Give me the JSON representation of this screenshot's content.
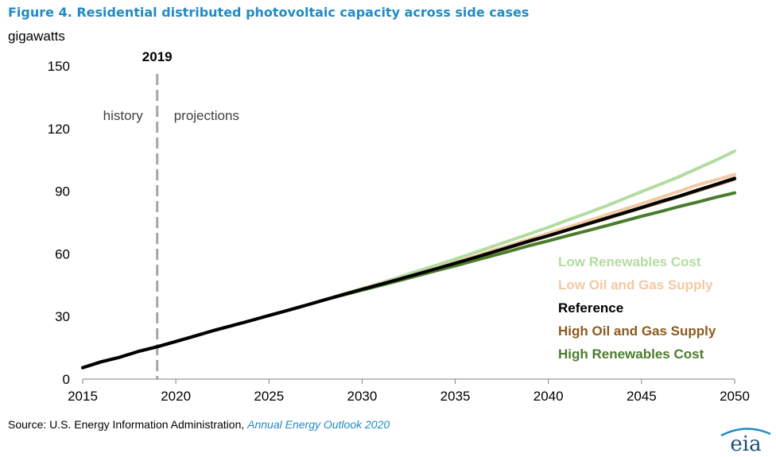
{
  "title": "Figure 4. Residential distributed photovoltaic capacity across side cases",
  "unit_label": "gigawatts",
  "source": {
    "prefix": "Source: U.S. Energy Information Administration, ",
    "publication": "Annual Energy Outlook 2020"
  },
  "logo_text": "eia",
  "chart_data": {
    "type": "line",
    "xlim": [
      2015,
      2050
    ],
    "ylim": [
      0,
      150
    ],
    "x_ticks": [
      2015,
      2020,
      2025,
      2030,
      2035,
      2040,
      2045,
      2050
    ],
    "y_ticks": [
      0,
      30,
      60,
      90,
      120,
      150
    ],
    "grid": false,
    "legend_position": "right",
    "annotations": {
      "divider_year": 2019,
      "divider_label": "2019",
      "left_label": "history",
      "right_label": "projections"
    },
    "series": [
      {
        "name": "Low Renewables Cost",
        "color": "#b3dca0",
        "x": [
          2015,
          2016,
          2017,
          2018,
          2019,
          2020,
          2021,
          2022,
          2023,
          2024,
          2025,
          2026,
          2027,
          2028,
          2029,
          2030,
          2031,
          2032,
          2033,
          2034,
          2035,
          2036,
          2037,
          2038,
          2039,
          2040,
          2041,
          2042,
          2043,
          2044,
          2045,
          2046,
          2047,
          2048,
          2049,
          2050
        ],
        "values": [
          5.5,
          8.3,
          10.5,
          13.3,
          15.5,
          18,
          20.6,
          23.2,
          25.6,
          28,
          30.5,
          32.9,
          35.4,
          38,
          40.8,
          43.4,
          46.1,
          48.9,
          51.8,
          54.6,
          57.5,
          60.5,
          63.5,
          66.6,
          69.6,
          72.7,
          76.1,
          79.3,
          82.6,
          86.2,
          89.8,
          93.3,
          96.9,
          100.9,
          104.9,
          109.2
        ]
      },
      {
        "name": "Low Oil and Gas Supply",
        "color": "#f2c9a3",
        "x": [
          2015,
          2016,
          2017,
          2018,
          2019,
          2020,
          2021,
          2022,
          2023,
          2024,
          2025,
          2026,
          2027,
          2028,
          2029,
          2030,
          2031,
          2032,
          2033,
          2034,
          2035,
          2036,
          2037,
          2038,
          2039,
          2040,
          2041,
          2042,
          2043,
          2044,
          2045,
          2046,
          2047,
          2048,
          2049,
          2050
        ],
        "values": [
          5.5,
          8.3,
          10.5,
          13.3,
          15.5,
          18,
          20.6,
          23.2,
          25.6,
          28,
          30.5,
          32.9,
          35.4,
          38,
          40.6,
          43.2,
          45.7,
          48.1,
          50.6,
          53.2,
          55.9,
          58.7,
          61.6,
          64.3,
          67.1,
          69.8,
          72.6,
          75.4,
          78.3,
          81.2,
          84,
          87,
          89.9,
          93,
          95.5,
          98
        ]
      },
      {
        "name": "Reference",
        "color": "#000000",
        "x": [
          2015,
          2016,
          2017,
          2018,
          2019,
          2020,
          2021,
          2022,
          2023,
          2024,
          2025,
          2026,
          2027,
          2028,
          2029,
          2030,
          2031,
          2032,
          2033,
          2034,
          2035,
          2036,
          2037,
          2038,
          2039,
          2040,
          2041,
          2042,
          2043,
          2044,
          2045,
          2046,
          2047,
          2048,
          2049,
          2050
        ],
        "values": [
          5.5,
          8.3,
          10.5,
          13.3,
          15.5,
          18,
          20.6,
          23.2,
          25.6,
          28,
          30.5,
          32.9,
          35.4,
          38,
          40.5,
          43,
          45.4,
          47.9,
          50.4,
          52.9,
          55.5,
          58.1,
          60.8,
          63.5,
          66.2,
          68.7,
          71.4,
          74.1,
          76.8,
          79.5,
          82.2,
          85,
          87.6,
          90.5,
          93.3,
          96.2
        ]
      },
      {
        "name": "High Oil and Gas Supply",
        "color": "#8b5a1e",
        "x": [
          2015,
          2016,
          2017,
          2018,
          2019,
          2020,
          2021,
          2022,
          2023,
          2024,
          2025,
          2026,
          2027,
          2028,
          2029,
          2030,
          2031,
          2032,
          2033,
          2034,
          2035,
          2036,
          2037,
          2038,
          2039,
          2040,
          2041,
          2042,
          2043,
          2044,
          2045,
          2046,
          2047,
          2048,
          2049,
          2050
        ],
        "values": [
          5.5,
          8.3,
          10.5,
          13.3,
          15.5,
          18,
          20.6,
          23.2,
          25.6,
          28,
          30.5,
          32.9,
          35.4,
          38,
          40.5,
          43,
          45.4,
          47.9,
          50.4,
          52.9,
          55.5,
          58,
          60.7,
          63.3,
          66,
          68.6,
          71.3,
          74,
          76.6,
          79.3,
          82,
          84.7,
          87.4,
          90.2,
          93,
          95.8
        ]
      },
      {
        "name": "High Renewables Cost",
        "color": "#4a7c2b",
        "x": [
          2015,
          2016,
          2017,
          2018,
          2019,
          2020,
          2021,
          2022,
          2023,
          2024,
          2025,
          2026,
          2027,
          2028,
          2029,
          2030,
          2031,
          2032,
          2033,
          2034,
          2035,
          2036,
          2037,
          2038,
          2039,
          2040,
          2041,
          2042,
          2043,
          2044,
          2045,
          2046,
          2047,
          2048,
          2049,
          2050
        ],
        "values": [
          5.5,
          8.3,
          10.5,
          13.3,
          15.5,
          18,
          20.6,
          23.2,
          25.6,
          28,
          30.5,
          32.9,
          35.4,
          38,
          40.3,
          42.6,
          44.9,
          47.2,
          49.6,
          52,
          54.3,
          56.7,
          59.1,
          61.5,
          64,
          66.2,
          68.6,
          70.9,
          73.2,
          75.6,
          78,
          80.2,
          82.6,
          84.8,
          87.1,
          89.2
        ]
      }
    ]
  }
}
